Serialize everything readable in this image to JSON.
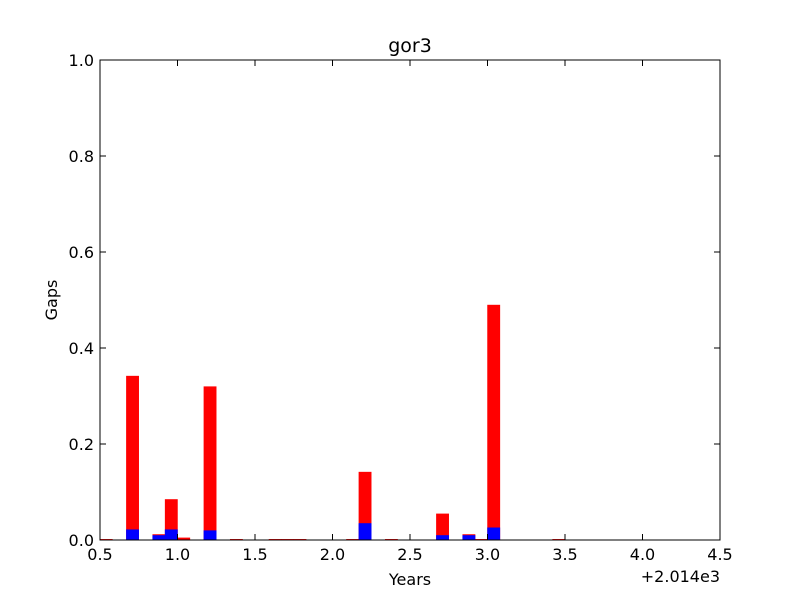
{
  "chart_data": {
    "type": "bar",
    "title": "gor3",
    "xlabel": "Years",
    "ylabel": "Gaps",
    "x_offset_label": "+2.014e3",
    "xlim": [
      0.5,
      4.5
    ],
    "ylim": [
      0,
      1.0
    ],
    "x_ticks": [
      "0.5",
      "1.0",
      "1.5",
      "2.0",
      "2.5",
      "3.0",
      "3.5",
      "4.0",
      "4.5"
    ],
    "y_ticks": [
      "0.0",
      "0.2",
      "0.4",
      "0.6",
      "0.8",
      "1.0"
    ],
    "grid": false,
    "bar_width": 0.083,
    "series": [
      {
        "color": "#ff0000",
        "points": [
          {
            "x": 0.54,
            "value": 0.002
          },
          {
            "x": 0.71,
            "value": 0.342
          },
          {
            "x": 0.88,
            "value": 0.012
          },
          {
            "x": 0.96,
            "value": 0.085
          },
          {
            "x": 1.04,
            "value": 0.005
          },
          {
            "x": 1.21,
            "value": 0.32
          },
          {
            "x": 1.38,
            "value": 0.002
          },
          {
            "x": 1.63,
            "value": 0.002
          },
          {
            "x": 1.71,
            "value": 0.002
          },
          {
            "x": 1.79,
            "value": 0.002
          },
          {
            "x": 2.13,
            "value": 0.002
          },
          {
            "x": 2.21,
            "value": 0.142
          },
          {
            "x": 2.38,
            "value": 0.002
          },
          {
            "x": 2.71,
            "value": 0.055
          },
          {
            "x": 2.88,
            "value": 0.012
          },
          {
            "x": 2.96,
            "value": 0.002
          },
          {
            "x": 3.04,
            "value": 0.49
          },
          {
            "x": 3.46,
            "value": 0.002
          }
        ]
      },
      {
        "color": "#0000ff",
        "points": [
          {
            "x": 0.71,
            "value": 0.022
          },
          {
            "x": 0.88,
            "value": 0.01
          },
          {
            "x": 0.96,
            "value": 0.022
          },
          {
            "x": 1.21,
            "value": 0.02
          },
          {
            "x": 2.21,
            "value": 0.035
          },
          {
            "x": 2.71,
            "value": 0.01
          },
          {
            "x": 2.88,
            "value": 0.01
          },
          {
            "x": 3.04,
            "value": 0.026
          }
        ]
      }
    ]
  }
}
